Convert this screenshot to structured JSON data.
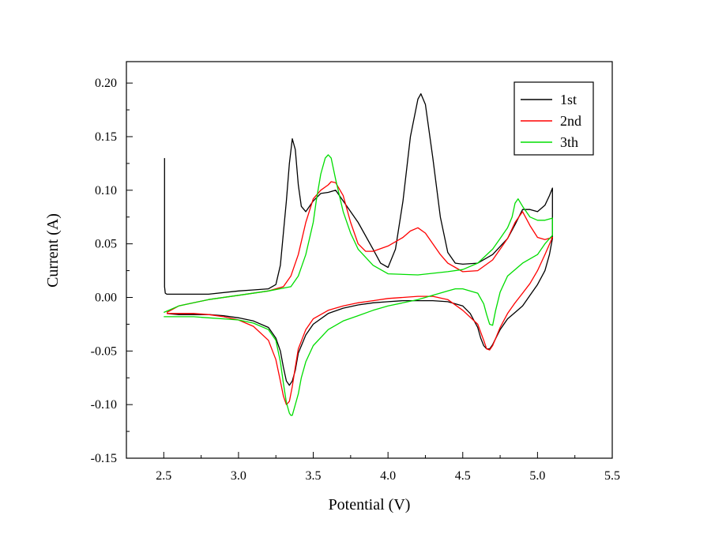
{
  "chart_data": {
    "type": "line",
    "title": "",
    "xlabel": "Potential (V)",
    "ylabel": "Current (A)",
    "xlim": [
      2.25,
      5.5
    ],
    "ylim": [
      -0.15,
      0.22
    ],
    "xticks": [
      2.5,
      3.0,
      3.5,
      4.0,
      4.5,
      5.0,
      5.5
    ],
    "xtick_labels": [
      "2.5",
      "3.0",
      "3.5",
      "4.0",
      "4.5",
      "5.0",
      "5.5"
    ],
    "yticks": [
      -0.15,
      -0.1,
      -0.05,
      0.0,
      0.05,
      0.1,
      0.15,
      0.2
    ],
    "ytick_labels": [
      "-0.15",
      "-0.10",
      "-0.05",
      "0.00",
      "0.05",
      "0.10",
      "0.15",
      "0.20"
    ],
    "grid": false,
    "legend_position": "top-right",
    "series": [
      {
        "name": "1st",
        "color": "#000000",
        "x": [
          2.505,
          2.505,
          2.51,
          2.52,
          2.6,
          2.8,
          3.0,
          3.1,
          3.2,
          3.25,
          3.28,
          3.3,
          3.32,
          3.34,
          3.36,
          3.38,
          3.4,
          3.42,
          3.45,
          3.5,
          3.55,
          3.6,
          3.65,
          3.7,
          3.8,
          3.9,
          3.95,
          4.0,
          4.05,
          4.1,
          4.15,
          4.2,
          4.22,
          4.25,
          4.3,
          4.35,
          4.4,
          4.45,
          4.5,
          4.6,
          4.7,
          4.8,
          4.85,
          4.9,
          4.95,
          5.0,
          5.05,
          5.08,
          5.1,
          5.1,
          5.08,
          5.05,
          5.0,
          4.95,
          4.9,
          4.85,
          4.8,
          4.75,
          4.7,
          4.68,
          4.66,
          4.64,
          4.62,
          4.6,
          4.55,
          4.5,
          4.4,
          4.3,
          4.2,
          4.1,
          4.0,
          3.9,
          3.8,
          3.7,
          3.6,
          3.5,
          3.45,
          3.4,
          3.38,
          3.36,
          3.34,
          3.32,
          3.3,
          3.28,
          3.25,
          3.2,
          3.1,
          3.0,
          2.9,
          2.8,
          2.7,
          2.6,
          2.52
        ],
        "y": [
          0.13,
          0.01,
          0.004,
          0.003,
          0.003,
          0.003,
          0.006,
          0.007,
          0.008,
          0.012,
          0.03,
          0.06,
          0.09,
          0.125,
          0.148,
          0.138,
          0.105,
          0.085,
          0.08,
          0.09,
          0.097,
          0.098,
          0.1,
          0.09,
          0.07,
          0.045,
          0.032,
          0.028,
          0.045,
          0.09,
          0.15,
          0.185,
          0.19,
          0.18,
          0.13,
          0.075,
          0.042,
          0.032,
          0.031,
          0.032,
          0.04,
          0.055,
          0.068,
          0.082,
          0.082,
          0.08,
          0.086,
          0.095,
          0.102,
          0.055,
          0.04,
          0.025,
          0.012,
          0.002,
          -0.008,
          -0.014,
          -0.02,
          -0.03,
          -0.044,
          -0.048,
          -0.048,
          -0.045,
          -0.038,
          -0.028,
          -0.015,
          -0.008,
          -0.004,
          -0.003,
          -0.003,
          -0.003,
          -0.004,
          -0.005,
          -0.007,
          -0.01,
          -0.015,
          -0.025,
          -0.035,
          -0.052,
          -0.068,
          -0.078,
          -0.082,
          -0.078,
          -0.065,
          -0.05,
          -0.038,
          -0.028,
          -0.022,
          -0.019,
          -0.017,
          -0.016,
          -0.016,
          -0.016,
          -0.015
        ]
      },
      {
        "name": "2nd",
        "color": "#ff0000",
        "x": [
          2.52,
          2.6,
          2.8,
          3.0,
          3.2,
          3.3,
          3.35,
          3.4,
          3.45,
          3.5,
          3.55,
          3.6,
          3.62,
          3.65,
          3.7,
          3.75,
          3.8,
          3.85,
          3.9,
          4.0,
          4.1,
          4.15,
          4.2,
          4.25,
          4.3,
          4.35,
          4.4,
          4.45,
          4.5,
          4.6,
          4.7,
          4.8,
          4.85,
          4.9,
          4.95,
          5.0,
          5.05,
          5.1,
          5.1,
          5.05,
          5.0,
          4.95,
          4.9,
          4.85,
          4.8,
          4.75,
          4.7,
          4.68,
          4.66,
          4.64,
          4.6,
          4.5,
          4.4,
          4.3,
          4.2,
          4.1,
          4.0,
          3.9,
          3.8,
          3.7,
          3.6,
          3.5,
          3.45,
          3.4,
          3.38,
          3.36,
          3.34,
          3.32,
          3.3,
          3.28,
          3.25,
          3.2,
          3.1,
          3.0,
          2.9,
          2.8,
          2.7,
          2.6,
          2.52
        ],
        "y": [
          -0.014,
          -0.008,
          -0.002,
          0.002,
          0.006,
          0.01,
          0.02,
          0.04,
          0.07,
          0.092,
          0.1,
          0.105,
          0.108,
          0.107,
          0.095,
          0.07,
          0.05,
          0.043,
          0.043,
          0.048,
          0.056,
          0.062,
          0.065,
          0.06,
          0.05,
          0.04,
          0.032,
          0.028,
          0.024,
          0.025,
          0.035,
          0.055,
          0.07,
          0.08,
          0.067,
          0.056,
          0.054,
          0.056,
          0.056,
          0.04,
          0.025,
          0.013,
          0.004,
          -0.005,
          -0.015,
          -0.028,
          -0.045,
          -0.049,
          -0.048,
          -0.04,
          -0.025,
          -0.012,
          -0.002,
          0.001,
          0.001,
          0.0,
          -0.001,
          -0.003,
          -0.005,
          -0.008,
          -0.012,
          -0.02,
          -0.03,
          -0.048,
          -0.065,
          -0.083,
          -0.097,
          -0.1,
          -0.092,
          -0.078,
          -0.058,
          -0.04,
          -0.027,
          -0.021,
          -0.018,
          -0.016,
          -0.015,
          -0.015,
          -0.015
        ]
      },
      {
        "name": "3th",
        "color": "#00dd00",
        "x": [
          2.5,
          2.6,
          2.8,
          3.0,
          3.2,
          3.35,
          3.4,
          3.45,
          3.5,
          3.52,
          3.55,
          3.58,
          3.6,
          3.62,
          3.65,
          3.7,
          3.75,
          3.8,
          3.9,
          4.0,
          4.2,
          4.4,
          4.5,
          4.6,
          4.7,
          4.75,
          4.8,
          4.83,
          4.85,
          4.87,
          4.9,
          4.95,
          5.0,
          5.05,
          5.1,
          5.1,
          5.05,
          5.0,
          4.9,
          4.8,
          4.75,
          4.72,
          4.7,
          4.68,
          4.66,
          4.64,
          4.6,
          4.5,
          4.45,
          4.4,
          4.3,
          4.2,
          4.1,
          4.0,
          3.9,
          3.8,
          3.7,
          3.6,
          3.5,
          3.45,
          3.42,
          3.4,
          3.38,
          3.36,
          3.35,
          3.34,
          3.32,
          3.3,
          3.28,
          3.25,
          3.2,
          3.1,
          3.0,
          2.9,
          2.8,
          2.7,
          2.6,
          2.5
        ],
        "y": [
          -0.014,
          -0.008,
          -0.002,
          0.002,
          0.006,
          0.01,
          0.02,
          0.04,
          0.07,
          0.09,
          0.115,
          0.13,
          0.133,
          0.13,
          0.11,
          0.08,
          0.06,
          0.045,
          0.03,
          0.022,
          0.021,
          0.024,
          0.026,
          0.032,
          0.045,
          0.055,
          0.065,
          0.075,
          0.088,
          0.092,
          0.085,
          0.075,
          0.072,
          0.072,
          0.074,
          0.058,
          0.05,
          0.04,
          0.032,
          0.02,
          0.005,
          -0.012,
          -0.026,
          -0.025,
          -0.016,
          -0.006,
          0.004,
          0.008,
          0.008,
          0.006,
          0.002,
          -0.002,
          -0.005,
          -0.008,
          -0.012,
          -0.017,
          -0.022,
          -0.03,
          -0.045,
          -0.06,
          -0.075,
          -0.09,
          -0.1,
          -0.11,
          -0.11,
          -0.108,
          -0.098,
          -0.08,
          -0.06,
          -0.04,
          -0.03,
          -0.024,
          -0.021,
          -0.02,
          -0.019,
          -0.018,
          -0.018,
          -0.018
        ]
      }
    ]
  }
}
